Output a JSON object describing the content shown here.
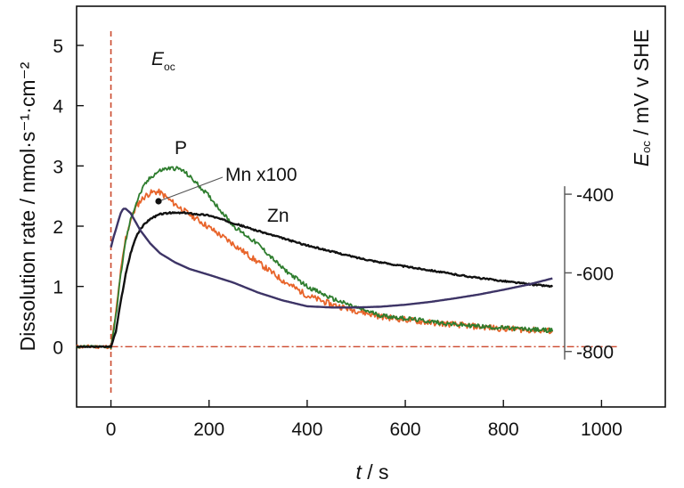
{
  "chart_data": {
    "type": "line",
    "xlabel": {
      "italic": "t",
      "rest": " / s"
    },
    "ylabel": "Dissolution rate / nmol·s⁻¹·cm⁻²",
    "y2label": {
      "italic": "E",
      "sub": "oc",
      "rest": " / mV v SHE"
    },
    "xlim": [
      -70,
      1130
    ],
    "ylim": [
      -1.0,
      5.65
    ],
    "y2lim": [
      -941,
      78
    ],
    "x_ticks": [
      0,
      200,
      400,
      600,
      800,
      1000
    ],
    "y_ticks": [
      0,
      1,
      2,
      3,
      4,
      5
    ],
    "y2_ticks": [
      -400,
      -600,
      -800
    ],
    "grid": false,
    "legend": "none",
    "colors": {
      "Eoc": "#3d3466",
      "P": "#2e7d2e",
      "Mn": "#e8642a",
      "Zn": "#111111",
      "guides": "#cc4a2e"
    },
    "series": [
      {
        "name": "Mn x100",
        "key": "Mn",
        "x": [
          -70,
          0,
          10,
          20,
          30,
          40,
          50,
          60,
          70,
          80,
          90,
          100,
          110,
          120,
          130,
          150,
          175,
          200,
          250,
          300,
          350,
          400,
          450,
          500,
          550,
          600,
          650,
          700,
          750,
          800,
          850,
          900
        ],
        "y": [
          0.0,
          0.0,
          0.55,
          1.25,
          1.8,
          2.1,
          2.3,
          2.42,
          2.5,
          2.55,
          2.57,
          2.56,
          2.5,
          2.43,
          2.37,
          2.25,
          2.12,
          1.98,
          1.7,
          1.4,
          1.1,
          0.85,
          0.7,
          0.6,
          0.5,
          0.45,
          0.4,
          0.37,
          0.33,
          0.3,
          0.28,
          0.26
        ],
        "noise": 0.05
      },
      {
        "name": "P",
        "key": "P",
        "x": [
          -70,
          0,
          10,
          20,
          30,
          40,
          50,
          60,
          70,
          80,
          90,
          100,
          110,
          120,
          130,
          140,
          150,
          170,
          200,
          250,
          300,
          350,
          400,
          450,
          500,
          550,
          600,
          650,
          700,
          750,
          800,
          850,
          900
        ],
        "y": [
          0.0,
          0.0,
          0.5,
          1.2,
          1.75,
          2.1,
          2.35,
          2.55,
          2.7,
          2.8,
          2.87,
          2.92,
          2.95,
          2.96,
          2.96,
          2.95,
          2.9,
          2.75,
          2.5,
          2.0,
          1.7,
          1.3,
          1.0,
          0.8,
          0.65,
          0.52,
          0.47,
          0.42,
          0.37,
          0.34,
          0.31,
          0.29,
          0.27
        ],
        "noise": 0.035
      },
      {
        "name": "Zn",
        "key": "Zn",
        "x": [
          -70,
          0,
          10,
          20,
          30,
          40,
          50,
          60,
          70,
          80,
          90,
          100,
          120,
          150,
          200,
          250,
          300,
          350,
          400,
          450,
          500,
          550,
          600,
          650,
          700,
          750,
          800,
          850,
          900
        ],
        "y": [
          0.0,
          0.0,
          0.25,
          0.75,
          1.2,
          1.55,
          1.8,
          1.95,
          2.05,
          2.12,
          2.16,
          2.2,
          2.22,
          2.22,
          2.18,
          2.05,
          1.92,
          1.8,
          1.68,
          1.58,
          1.48,
          1.4,
          1.33,
          1.27,
          1.2,
          1.14,
          1.09,
          1.04,
          1.0
        ],
        "noise": 0.012
      },
      {
        "name": "Eoc",
        "key": "Eoc",
        "axis": "right",
        "x": [
          0,
          5,
          10,
          15,
          20,
          25,
          30,
          40,
          50,
          60,
          80,
          100,
          130,
          160,
          200,
          250,
          300,
          350,
          400,
          450,
          500,
          550,
          600,
          650,
          700,
          750,
          800,
          850,
          900
        ],
        "y": [
          -535,
          -510,
          -490,
          -468,
          -448,
          -437,
          -437,
          -448,
          -470,
          -492,
          -525,
          -550,
          -573,
          -590,
          -605,
          -625,
          -650,
          -670,
          -685,
          -688,
          -688,
          -686,
          -681,
          -674,
          -665,
          -655,
          -643,
          -630,
          -614
        ]
      }
    ],
    "annotations": [
      {
        "text": "Mn x100",
        "series": "Mn"
      },
      {
        "text": "P",
        "series": "P"
      },
      {
        "text": "Zn",
        "series": "Zn"
      },
      {
        "text_italic": "E",
        "text_sub": "oc",
        "series": "Eoc"
      }
    ]
  }
}
